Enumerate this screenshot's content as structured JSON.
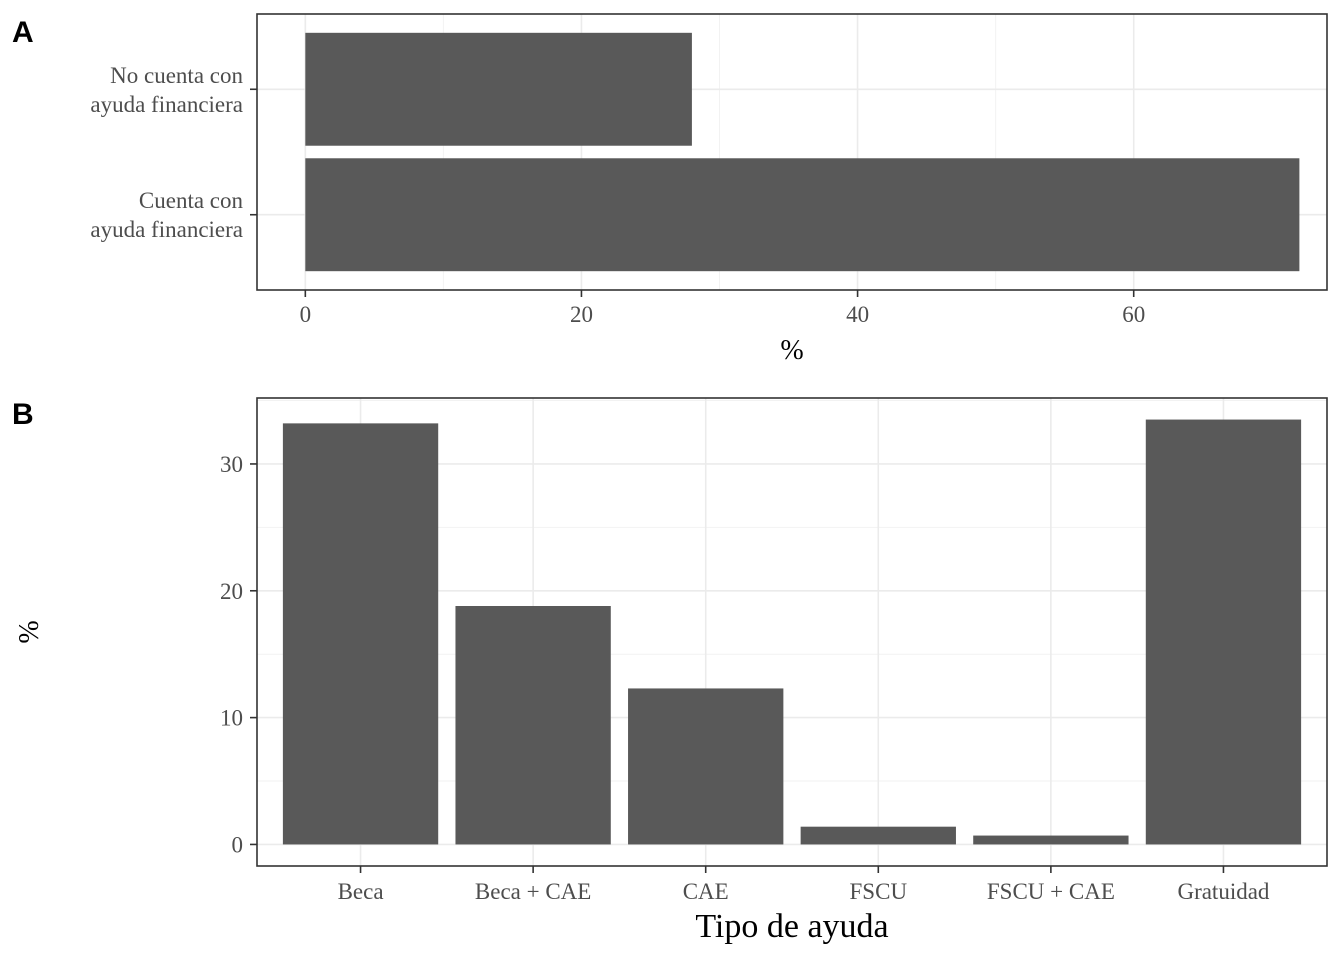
{
  "chart_data": [
    {
      "tag": "A",
      "type": "bar",
      "orientation": "horizontal",
      "categories": [
        "No cuenta con\nayuda financiera",
        "Cuenta con\nayuda financiera"
      ],
      "values": [
        28,
        72
      ],
      "xlabel": "%",
      "ylabel": "",
      "xlim": [
        -3.5,
        74
      ],
      "xticks": [
        0,
        20,
        40,
        60
      ],
      "grid": true,
      "bar_color": "#595959"
    },
    {
      "tag": "B",
      "type": "bar",
      "orientation": "vertical",
      "categories": [
        "Beca",
        "Beca + CAE",
        "CAE",
        "FSCU",
        "FSCU + CAE",
        "Gratuidad"
      ],
      "values": [
        33.2,
        18.8,
        12.3,
        1.4,
        0.7,
        33.5
      ],
      "xlabel": "Tipo de ayuda",
      "ylabel": "%",
      "ylim": [
        -1.7,
        35.2
      ],
      "yticks": [
        0,
        10,
        20,
        30
      ],
      "grid": true,
      "bar_color": "#595959"
    }
  ]
}
